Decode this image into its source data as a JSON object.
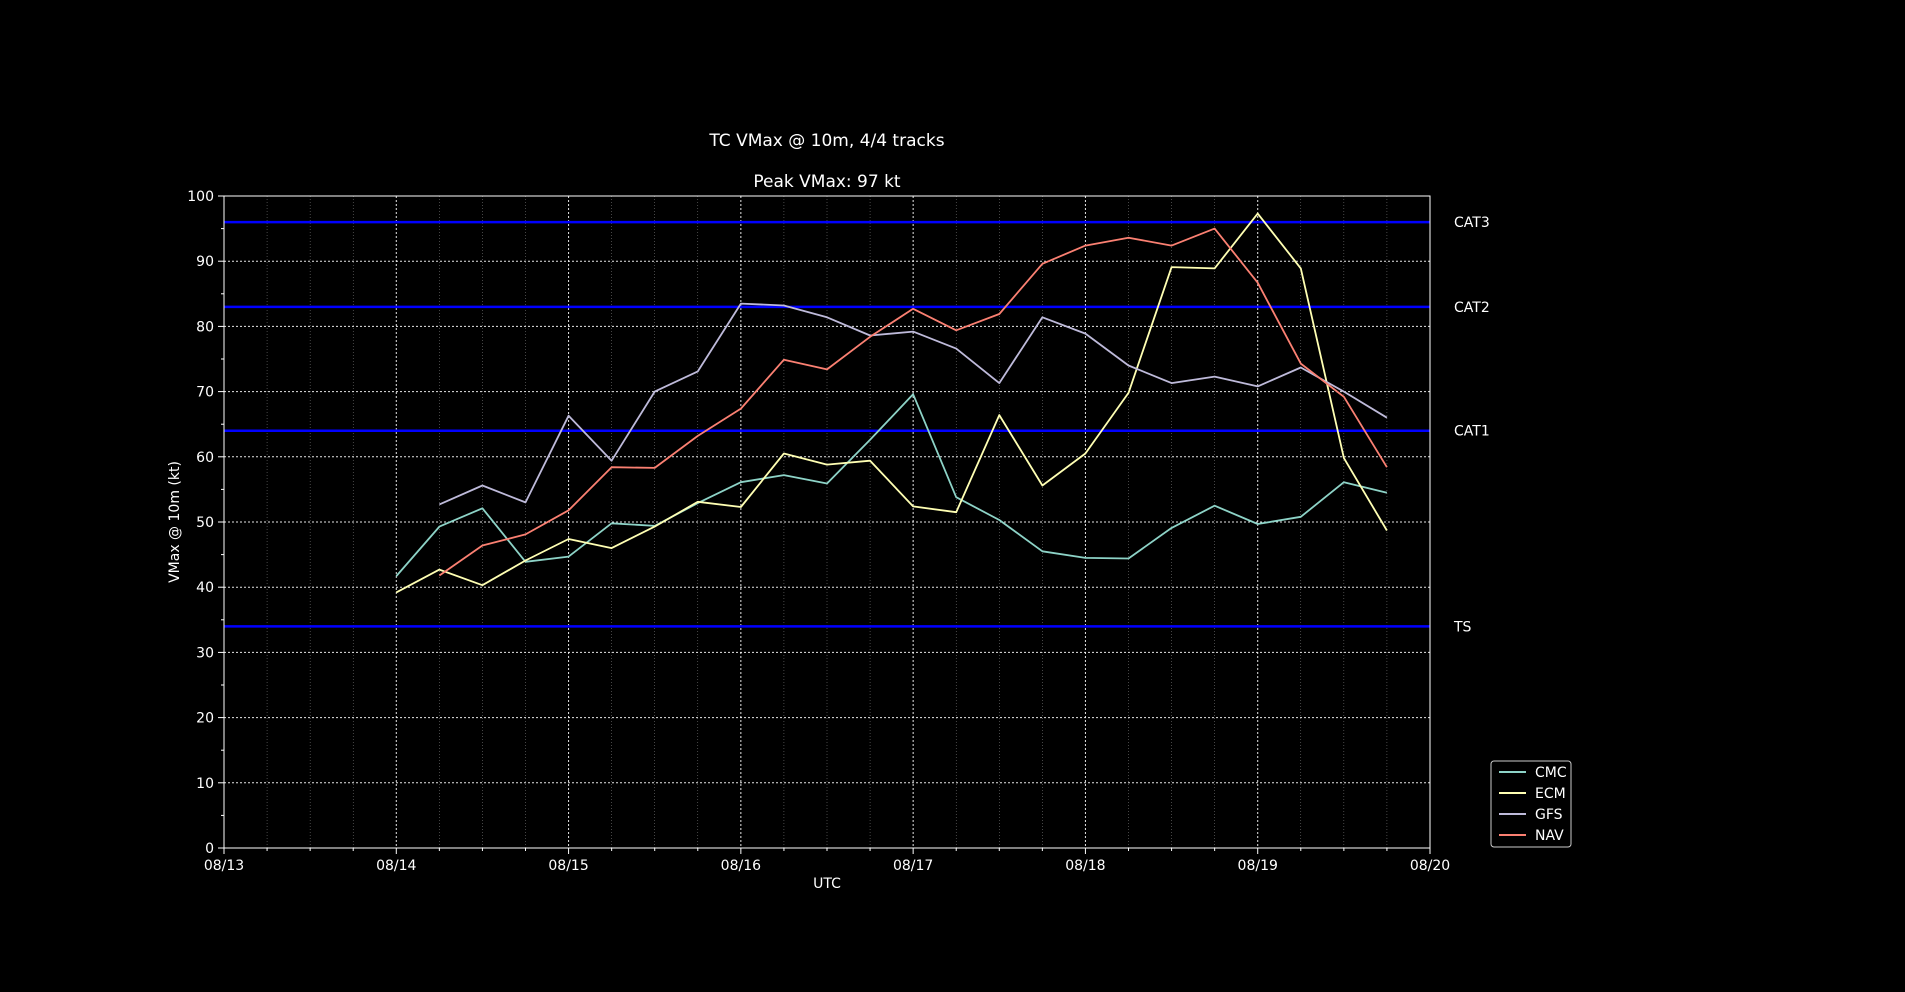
{
  "chart_data": {
    "type": "line",
    "title": "TC VMax @ 10m, 4/4 tracks",
    "subtitle": "Peak VMax: 97 kt",
    "xlabel": "UTC",
    "ylabel": "VMax @ 10m (kt)",
    "xlim": [
      "08/13 00",
      "08/20 00"
    ],
    "ylim": [
      0,
      100
    ],
    "x_ticks": [
      "08/13",
      "08/14",
      "08/15",
      "08/16",
      "08/17",
      "08/18",
      "08/19",
      "08/20"
    ],
    "y_ticks": [
      0,
      10,
      20,
      30,
      40,
      50,
      60,
      70,
      80,
      90,
      100
    ],
    "grid": true,
    "legend_position": "lower-right, outside",
    "thresholds": [
      {
        "label": "TS",
        "value": 34
      },
      {
        "label": "CAT1",
        "value": 64
      },
      {
        "label": "CAT2",
        "value": 83
      },
      {
        "label": "CAT3",
        "value": 96
      }
    ],
    "threshold_color": "#0000ff",
    "x": [
      "08/14 00",
      "08/14 06",
      "08/14 12",
      "08/14 18",
      "08/15 00",
      "08/15 06",
      "08/15 12",
      "08/15 18",
      "08/16 00",
      "08/16 06",
      "08/16 12",
      "08/16 18",
      "08/17 00",
      "08/17 06",
      "08/17 12",
      "08/17 18",
      "08/18 00",
      "08/18 06",
      "08/18 12",
      "08/18 18",
      "08/19 00",
      "08/19 06",
      "08/19 12",
      "08/19 18"
    ],
    "series": [
      {
        "name": "CMC",
        "color": "#8dd3c7",
        "values": [
          41.7,
          49.3,
          52.1,
          43.9,
          44.7,
          49.8,
          49.4,
          52.9,
          56.1,
          57.2,
          55.9,
          62.6,
          69.6,
          53.8,
          50.3,
          45.5,
          44.5,
          44.4,
          49.1,
          52.5,
          49.7,
          50.8,
          56.1,
          54.5
        ]
      },
      {
        "name": "ECM",
        "color": "#ffffb3",
        "values": [
          39.2,
          42.7,
          40.3,
          44.1,
          47.4,
          46.0,
          49.3,
          53.1,
          52.3,
          60.5,
          58.8,
          59.4,
          52.4,
          51.5,
          66.4,
          55.6,
          60.5,
          69.8,
          89.1,
          88.9,
          97.3,
          88.9,
          59.8,
          48.7
        ]
      },
      {
        "name": "GFS",
        "color": "#bebada",
        "values": [
          null,
          52.7,
          55.6,
          53.0,
          66.3,
          59.4,
          70.0,
          73.1,
          83.5,
          83.2,
          81.4,
          78.6,
          79.2,
          76.6,
          71.3,
          81.4,
          78.9,
          74.0,
          71.3,
          72.3,
          70.8,
          73.7,
          70.0,
          66.0
        ]
      },
      {
        "name": "NAV",
        "color": "#fb8072",
        "values": [
          null,
          41.8,
          46.4,
          48.1,
          51.8,
          58.4,
          58.3,
          63.2,
          67.4,
          74.9,
          73.4,
          78.4,
          82.7,
          79.4,
          81.9,
          89.6,
          92.4,
          93.6,
          92.4,
          95.0,
          86.7,
          74.3,
          69.2,
          58.4
        ]
      }
    ]
  }
}
